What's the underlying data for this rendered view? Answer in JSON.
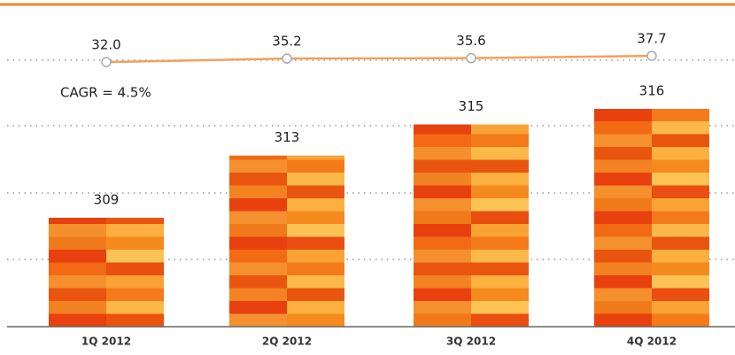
{
  "chart_data": {
    "type": "bar",
    "annotation": "CAGR = 4.5%",
    "categories": [
      "1Q 2012",
      "2Q 2012",
      "3Q 2012",
      "4Q 2012"
    ],
    "series": [
      {
        "type": "bar",
        "color": "#f07a1a",
        "values": [
          309,
          313,
          315,
          316
        ]
      },
      {
        "type": "line",
        "axis": "y2",
        "color": "#f4a05a",
        "values": [
          32.0,
          35.2,
          35.6,
          37.7
        ],
        "value_labels": [
          "32.0",
          "35.2",
          "35.6",
          "37.7"
        ]
      }
    ],
    "ylim": [
      302,
      323
    ],
    "y2lim": [
      -211,
      89
    ]
  }
}
